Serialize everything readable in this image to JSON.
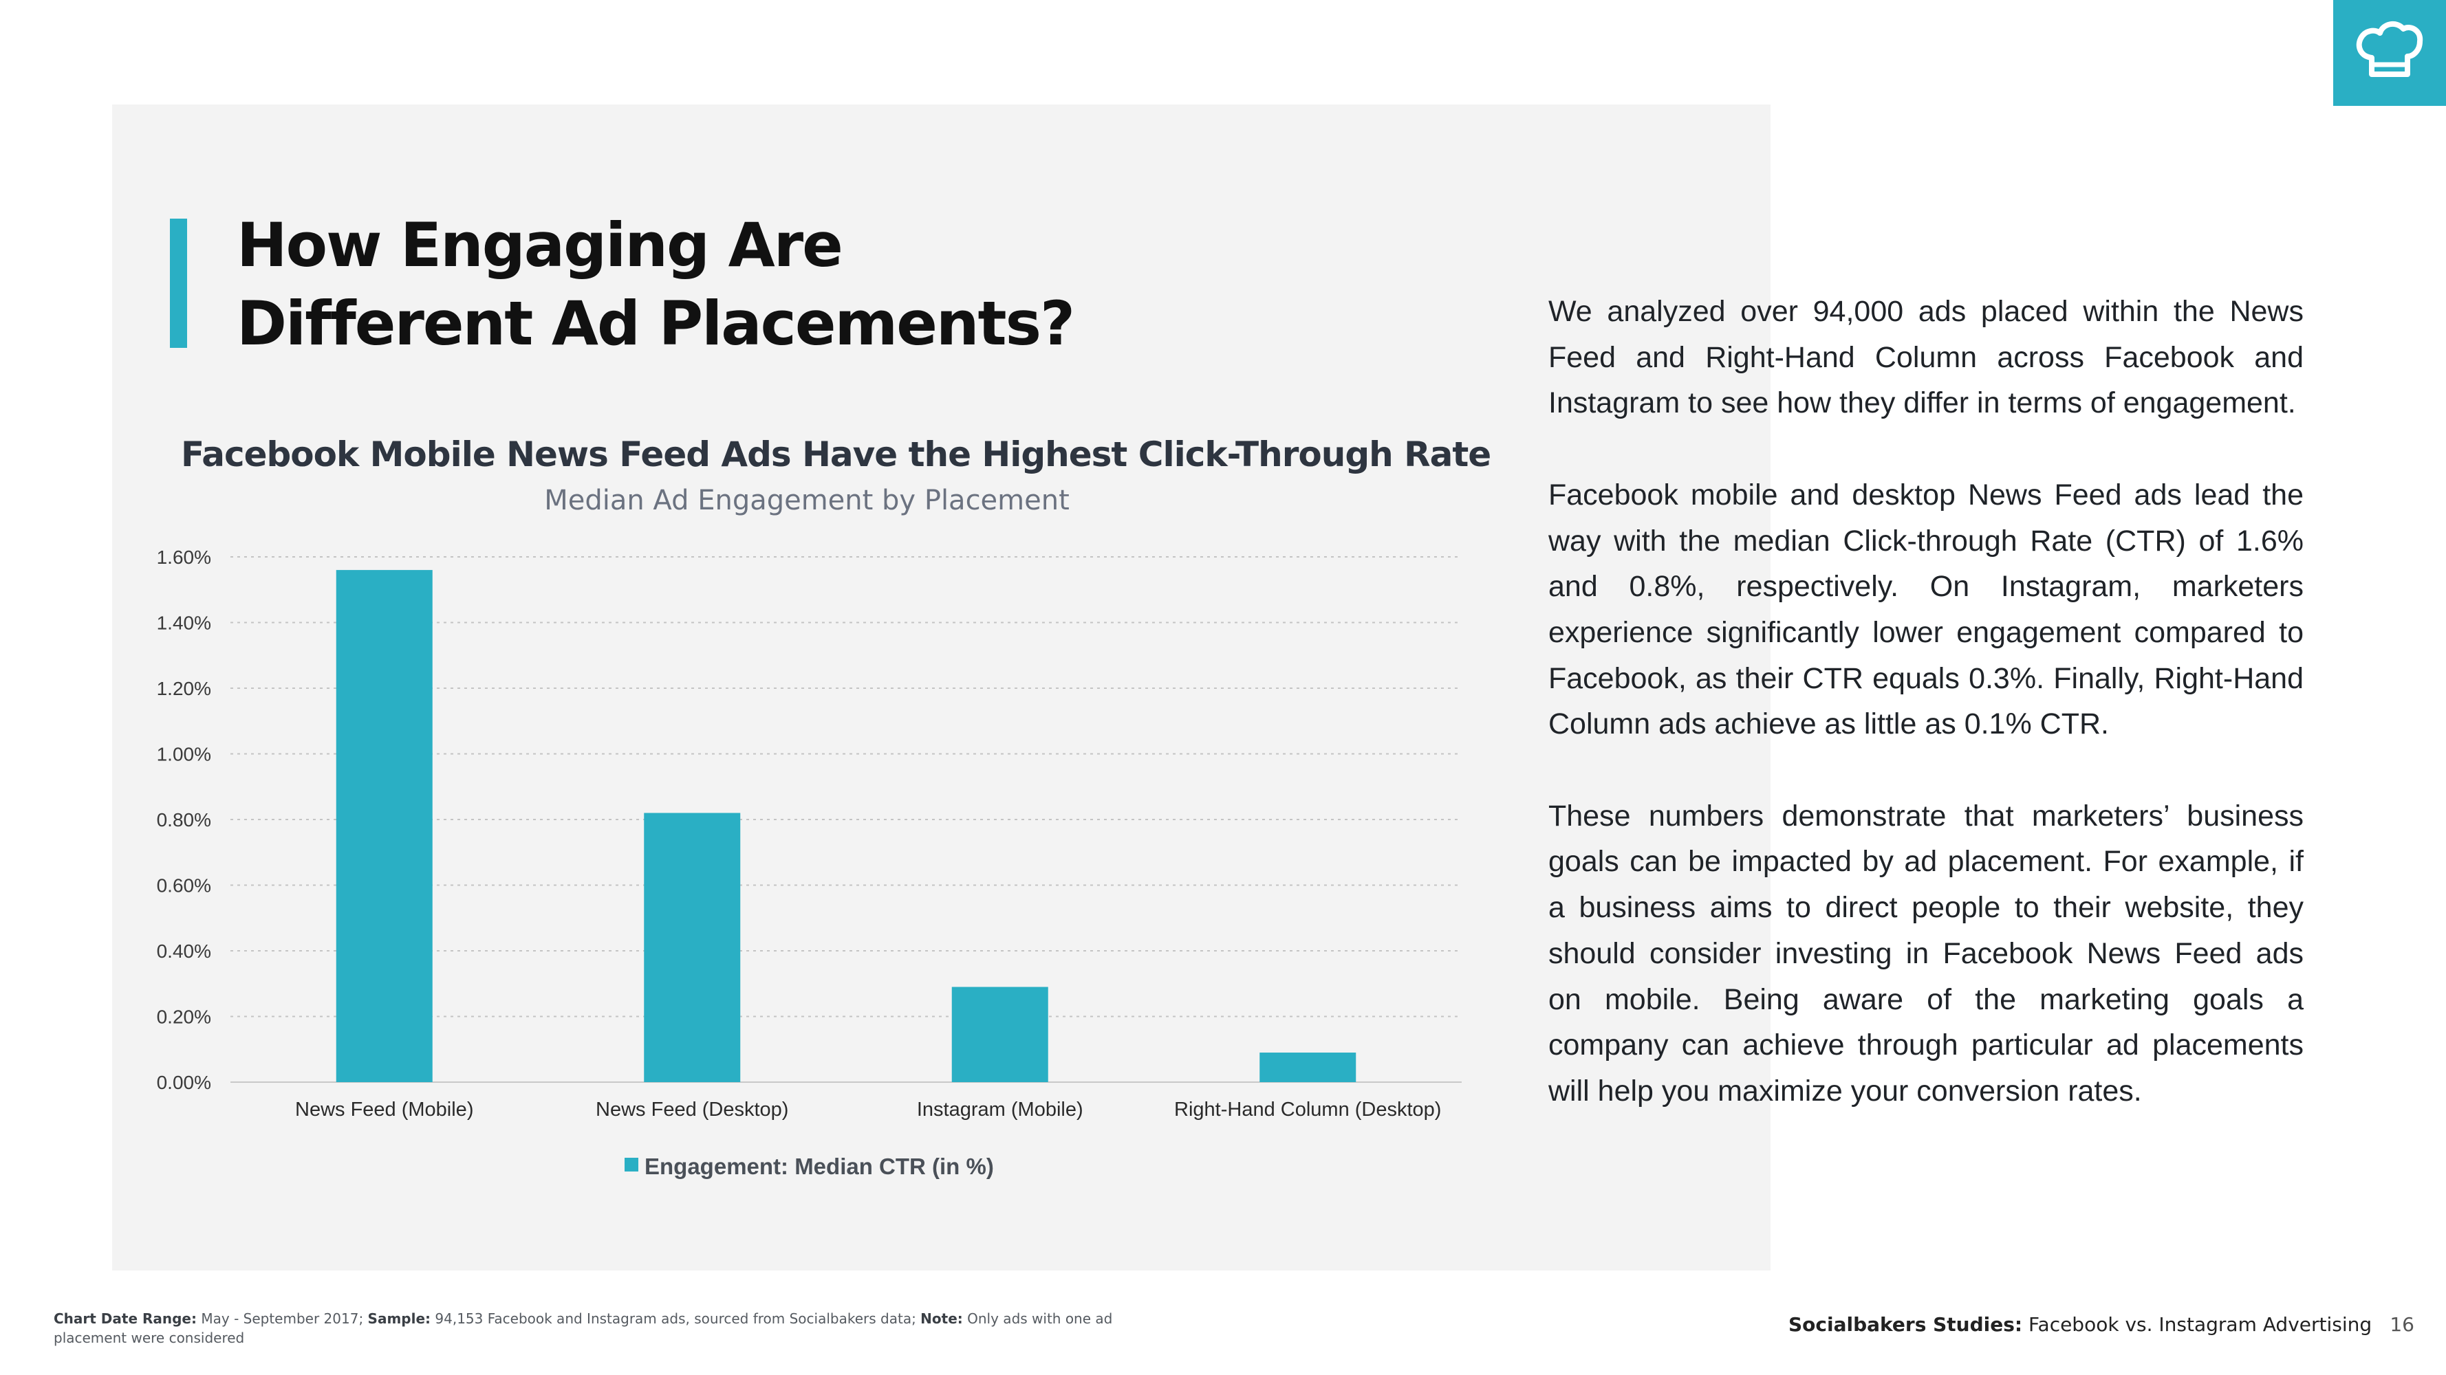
{
  "header": {
    "title_line1": "How Engaging Are",
    "title_line2": "Different Ad Placements?",
    "logo_icon": "chef-hat-icon",
    "accent_color": "#2aafc4"
  },
  "chart_data": {
    "type": "bar",
    "title": "Facebook Mobile News Feed Ads Have the Highest Click-Through Rate",
    "subtitle": "Median Ad Engagement by Placement",
    "categories": [
      "News Feed (Mobile)",
      "News Feed (Desktop)",
      "Instagram (Mobile)",
      "Right-Hand Column (Desktop)"
    ],
    "series": [
      {
        "name": "Engagement: Median CTR (in %)",
        "values": [
          1.56,
          0.82,
          0.29,
          0.09
        ],
        "color": "#2aafc4"
      }
    ],
    "yticks": [
      "0.00%",
      "0.20%",
      "0.40%",
      "0.60%",
      "0.80%",
      "1.00%",
      "1.20%",
      "1.40%",
      "1.60%"
    ],
    "ylim": [
      0,
      1.6
    ],
    "xlabel": "",
    "ylabel": "",
    "grid": true,
    "legend": "bottom"
  },
  "body": {
    "paragraph1": "We analyzed over 94,000 ads placed within the News Feed and Right-Hand Column across Facebook and Instagram to see how they differ in terms of engagement.",
    "paragraph2": "Facebook mobile and desktop News Feed ads lead the way with the median Click-through Rate (CTR) of 1.6% and 0.8%, respectively. On Instagram, marketers experience significantly lower engagement compared to Facebook, as their CTR equals 0.3%. Finally, Right-Hand Column ads achieve as little as 0.1% CTR.",
    "paragraph3": "These numbers demonstrate that marketers’ business goals can be impacted by ad placement. For example, if a business aims  to direct people to their website, they should consider investing in Facebook News Feed ads on mobile. Being aware of the marketing goals a company can achieve through particular ad placements will help you maximize your conversion rates."
  },
  "footnote": {
    "range_label": "Chart Date Range:",
    "range_value": " May - September 2017; ",
    "sample_label": "Sample:",
    "sample_value": " 94,153 Facebook and Instagram ads, sourced from Socialbakers data; ",
    "note_label": "Note:",
    "note_value": " Only ads with one ad placement were considered"
  },
  "footer": {
    "brand": "Socialbakers Studies:",
    "subtitle": " Facebook vs. Instagram Advertising",
    "page_number": "16"
  }
}
